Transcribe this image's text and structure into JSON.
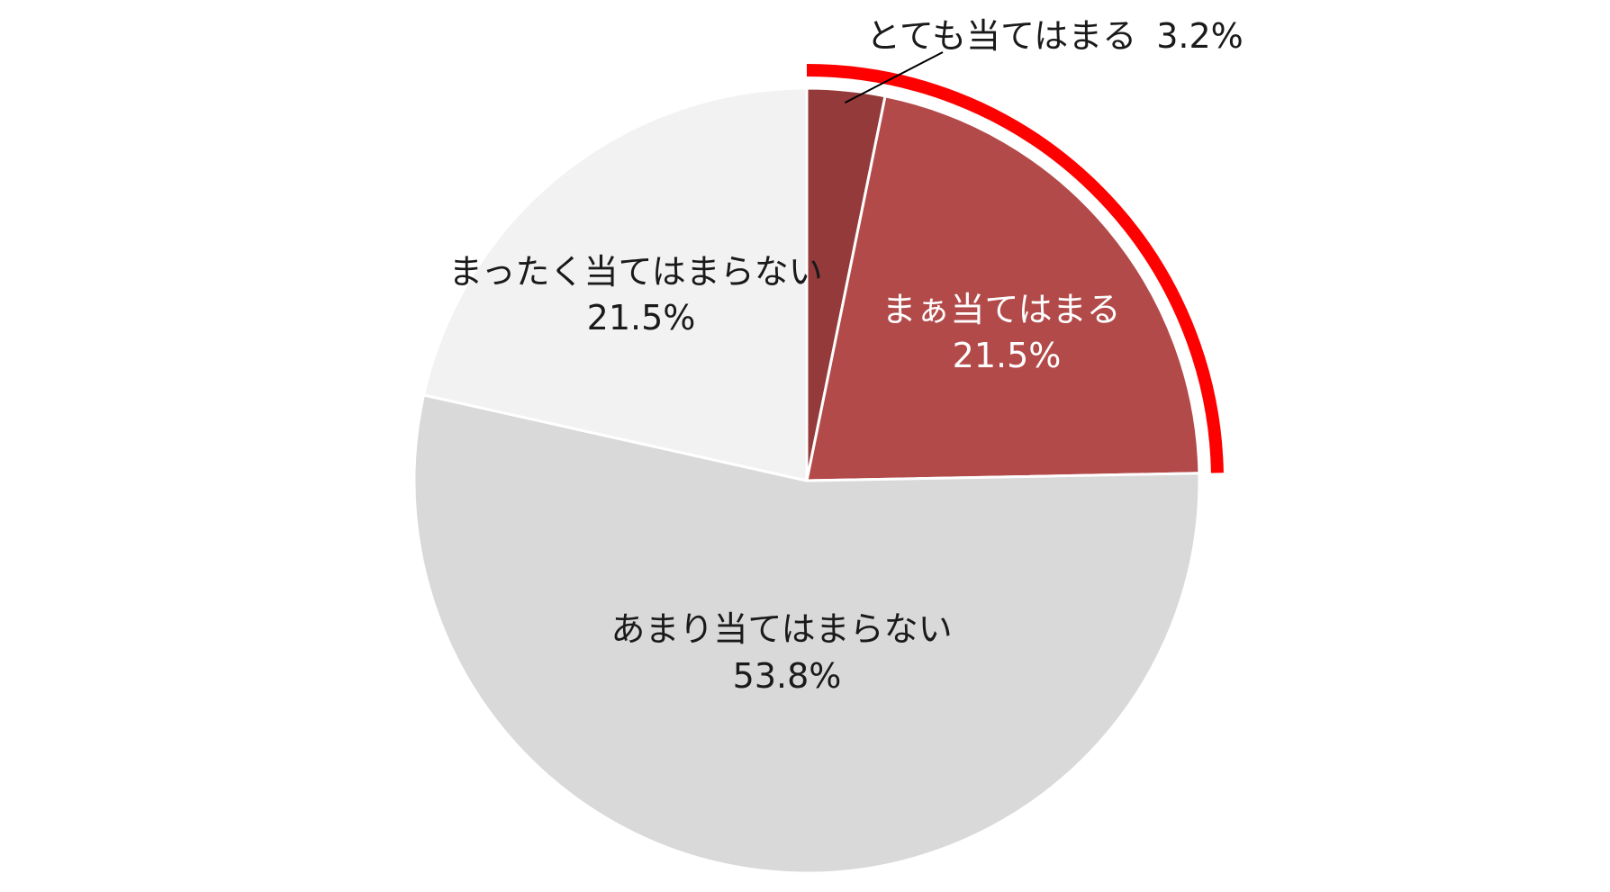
{
  "chart_data": {
    "type": "pie",
    "title": "",
    "start_angle": "12 o'clock, clockwise",
    "slices": [
      {
        "label": "とても当てはまる",
        "value": 3.2,
        "value_label": "3.2%",
        "color": "#943a3a"
      },
      {
        "label": "まぁ当てはまる",
        "value": 21.5,
        "value_label": "21.5%",
        "color": "#b34a4a"
      },
      {
        "label": "あまり当てはまらない",
        "value": 53.8,
        "value_label": "53.8%",
        "color": "#d9d9d9"
      },
      {
        "label": "まったく当てはまらない",
        "value": 21.5,
        "value_label": "21.5%",
        "color": "#f2f2f2"
      }
    ],
    "highlight": {
      "covers": [
        "とても当てはまる",
        "まぁ当てはまる"
      ],
      "color": "#ff0000"
    }
  }
}
